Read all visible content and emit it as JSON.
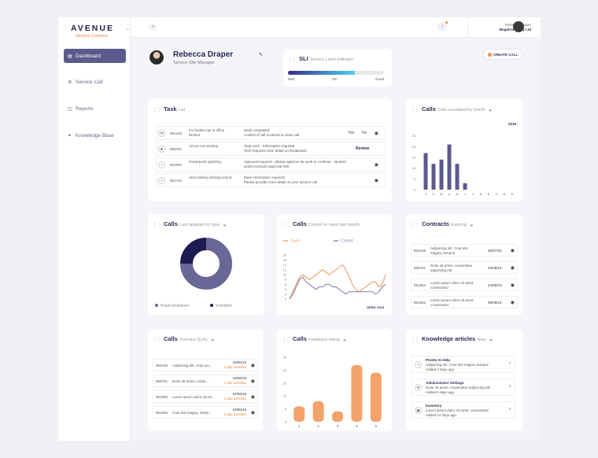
{
  "brand": {
    "name": "AVENUE",
    "sub": "Service Connect"
  },
  "sidebar": {
    "items": [
      {
        "label": "Dashboard",
        "icon": "dashboard-icon"
      },
      {
        "label": "Service Call",
        "icon": "wrench-icon"
      },
      {
        "label": "Reports",
        "icon": "chart-icon"
      },
      {
        "label": "Knowledge Base",
        "icon": "bulb-icon"
      }
    ]
  },
  "topbar": {
    "user_name": "Rebecca Draper",
    "company": "Megatronic Pty Ltd"
  },
  "profile": {
    "name": "Rebecca Draper",
    "role": "Service Site Manager"
  },
  "sli": {
    "title": "SLI",
    "sub": "Service Level Indicator",
    "level": 0.7,
    "labels": [
      "Bad",
      "OK",
      "Good"
    ]
  },
  "create_call": "CREATE CALL",
  "task": {
    "title": "Task",
    "sub": "List",
    "rows": [
      {
        "id": "852159",
        "desc": "Fix broken tap in office kitchen",
        "status": "Work completed\nConfirm if call resolved to close call",
        "yes": "Yes",
        "no": "No"
      },
      {
        "id": "859751",
        "desc": "Aircon not working",
        "status": "Stop work - Information required\nTech requires more detail on breakdown",
        "action": "Review"
      },
      {
        "id": "851893",
        "desc": "Powerpoint sparking",
        "status": "Approval required - please approve for work to continue - Quoted works exceeds approval limit"
      },
      {
        "id": "851744",
        "desc": "Vent making clicking sound",
        "status": "More information required\nPlease provide more detail on your service call"
      }
    ]
  },
  "calls_escalated": {
    "title": "Calls",
    "sub": "Total escalated by month",
    "year": "2019"
  },
  "calls_type": {
    "title": "Calls",
    "sub": "Last updated by type",
    "legend": [
      "Reade breakdown",
      "scheduled"
    ]
  },
  "calls_open": {
    "title": "Calls",
    "sub": "Closed vs open last month",
    "legend": [
      "Open",
      "Closed"
    ],
    "date": "APRIL 2019"
  },
  "contracts": {
    "title": "Contracts",
    "sub": "Expiring",
    "rows": [
      {
        "id": "852159",
        "text": "Adipiscing elit. Cras nisl magna, tempus",
        "date": "20/07/19"
      },
      {
        "id": "859751",
        "text": "Dolor sit amet, consectetur adipiscing elit",
        "date": "02/08/19"
      },
      {
        "id": "851893",
        "text": "Lorem ipsum dolor sit amet, consectetur",
        "date": "24/08/19"
      },
      {
        "id": "851893",
        "text": "Lorem ipsum dolor sit amet, consectetur",
        "date": "06/09/19"
      }
    ]
  },
  "overdue": {
    "title": "Calls",
    "sub": "Overdue SLAs",
    "rows": [
      {
        "id": "852159",
        "text": "Adipiscing elit. Cras nis...",
        "date": "15/06/19",
        "od": "2 day overdue"
      },
      {
        "id": "859751",
        "text": "Dolor sit amet, conse...",
        "date": "19/06/19",
        "od": "1 day overdue"
      },
      {
        "id": "851893",
        "text": "Lorem ipsum dolor sit am...",
        "date": "19/06/19",
        "od": "1 day overdue"
      },
      {
        "id": "851893",
        "text": "Cras nisl magna, tempi...",
        "date": "19/06/19",
        "od": "1 day overdue"
      }
    ]
  },
  "feedback": {
    "title": "Calls",
    "sub": "Feedback rating"
  },
  "knowledge": {
    "title": "Knowledge articles",
    "sub": "New",
    "rows": [
      {
        "title": "Pronto Xi Help",
        "desc": "Adipiscing elit. Cras nisl magna, tempus",
        "added": "Added 2 days ago",
        "icon": "help-icon"
      },
      {
        "title": "Administrator Settings",
        "desc": "Dolor sit amet, consectetur adipiscing elit",
        "added": "Added 6 days ago",
        "icon": "settings-icon"
      },
      {
        "title": "Inventory",
        "desc": "Lorem ipsum dolor sit amet, consectetur",
        "added": "Added 14 days ago",
        "icon": "box-icon"
      }
    ]
  },
  "colors": {
    "purple": "#5c5a8c",
    "orange": "#f4a26b",
    "accent": "#f0803c",
    "navy": "#1e1a52"
  },
  "chart_data": [
    {
      "type": "bar",
      "id": "escalated",
      "categories": [
        "J",
        "F",
        "M",
        "A",
        "M",
        "J",
        "J",
        "A",
        "S",
        "O",
        "N",
        "D"
      ],
      "values": [
        17,
        12,
        14,
        21,
        12,
        3,
        0,
        0,
        0,
        0,
        0,
        0
      ],
      "ylim": [
        0,
        30
      ],
      "yticks": [
        0,
        5,
        10,
        15,
        20,
        25
      ],
      "grid": false
    },
    {
      "type": "pie",
      "id": "calltype",
      "values": [
        {
          "name": "Reade breakdown",
          "value": 75
        },
        {
          "name": "scheduled",
          "value": 25
        }
      ],
      "donut": true
    },
    {
      "type": "line",
      "id": "openclosed",
      "x": [
        1,
        2,
        3,
        4,
        5,
        6,
        7,
        8,
        9,
        10,
        11,
        12,
        13,
        14,
        15,
        16,
        17,
        18,
        19,
        20,
        21,
        22,
        23,
        24,
        25,
        26,
        27,
        28,
        29,
        30
      ],
      "series": [
        {
          "name": "Open",
          "values": [
            0,
            3,
            6,
            9,
            10,
            9,
            8,
            9,
            10,
            11,
            12,
            11,
            10,
            11,
            12,
            13,
            14,
            12,
            9,
            6,
            4,
            3,
            4,
            5,
            6,
            7,
            7,
            5,
            6,
            10
          ]
        },
        {
          "name": "Closed",
          "values": [
            0,
            2,
            5,
            8,
            9,
            7,
            6,
            5,
            4,
            5,
            5,
            6,
            6,
            5,
            5,
            4,
            3,
            2,
            3,
            3,
            3,
            3,
            3,
            3,
            3,
            3,
            2,
            3,
            5,
            6
          ]
        }
      ],
      "ylim": [
        0,
        20
      ],
      "yticks": [
        0,
        2,
        4,
        6,
        8,
        10,
        12,
        14,
        16,
        18
      ],
      "grid": false
    },
    {
      "type": "bar",
      "id": "feedback",
      "categories": [
        "1",
        "2",
        "3",
        "4",
        "5"
      ],
      "values": [
        6,
        8,
        4,
        22,
        19
      ],
      "ylim": [
        0,
        25
      ],
      "yticks": [
        0,
        5,
        10,
        15,
        20,
        25
      ],
      "grid": false
    }
  ]
}
